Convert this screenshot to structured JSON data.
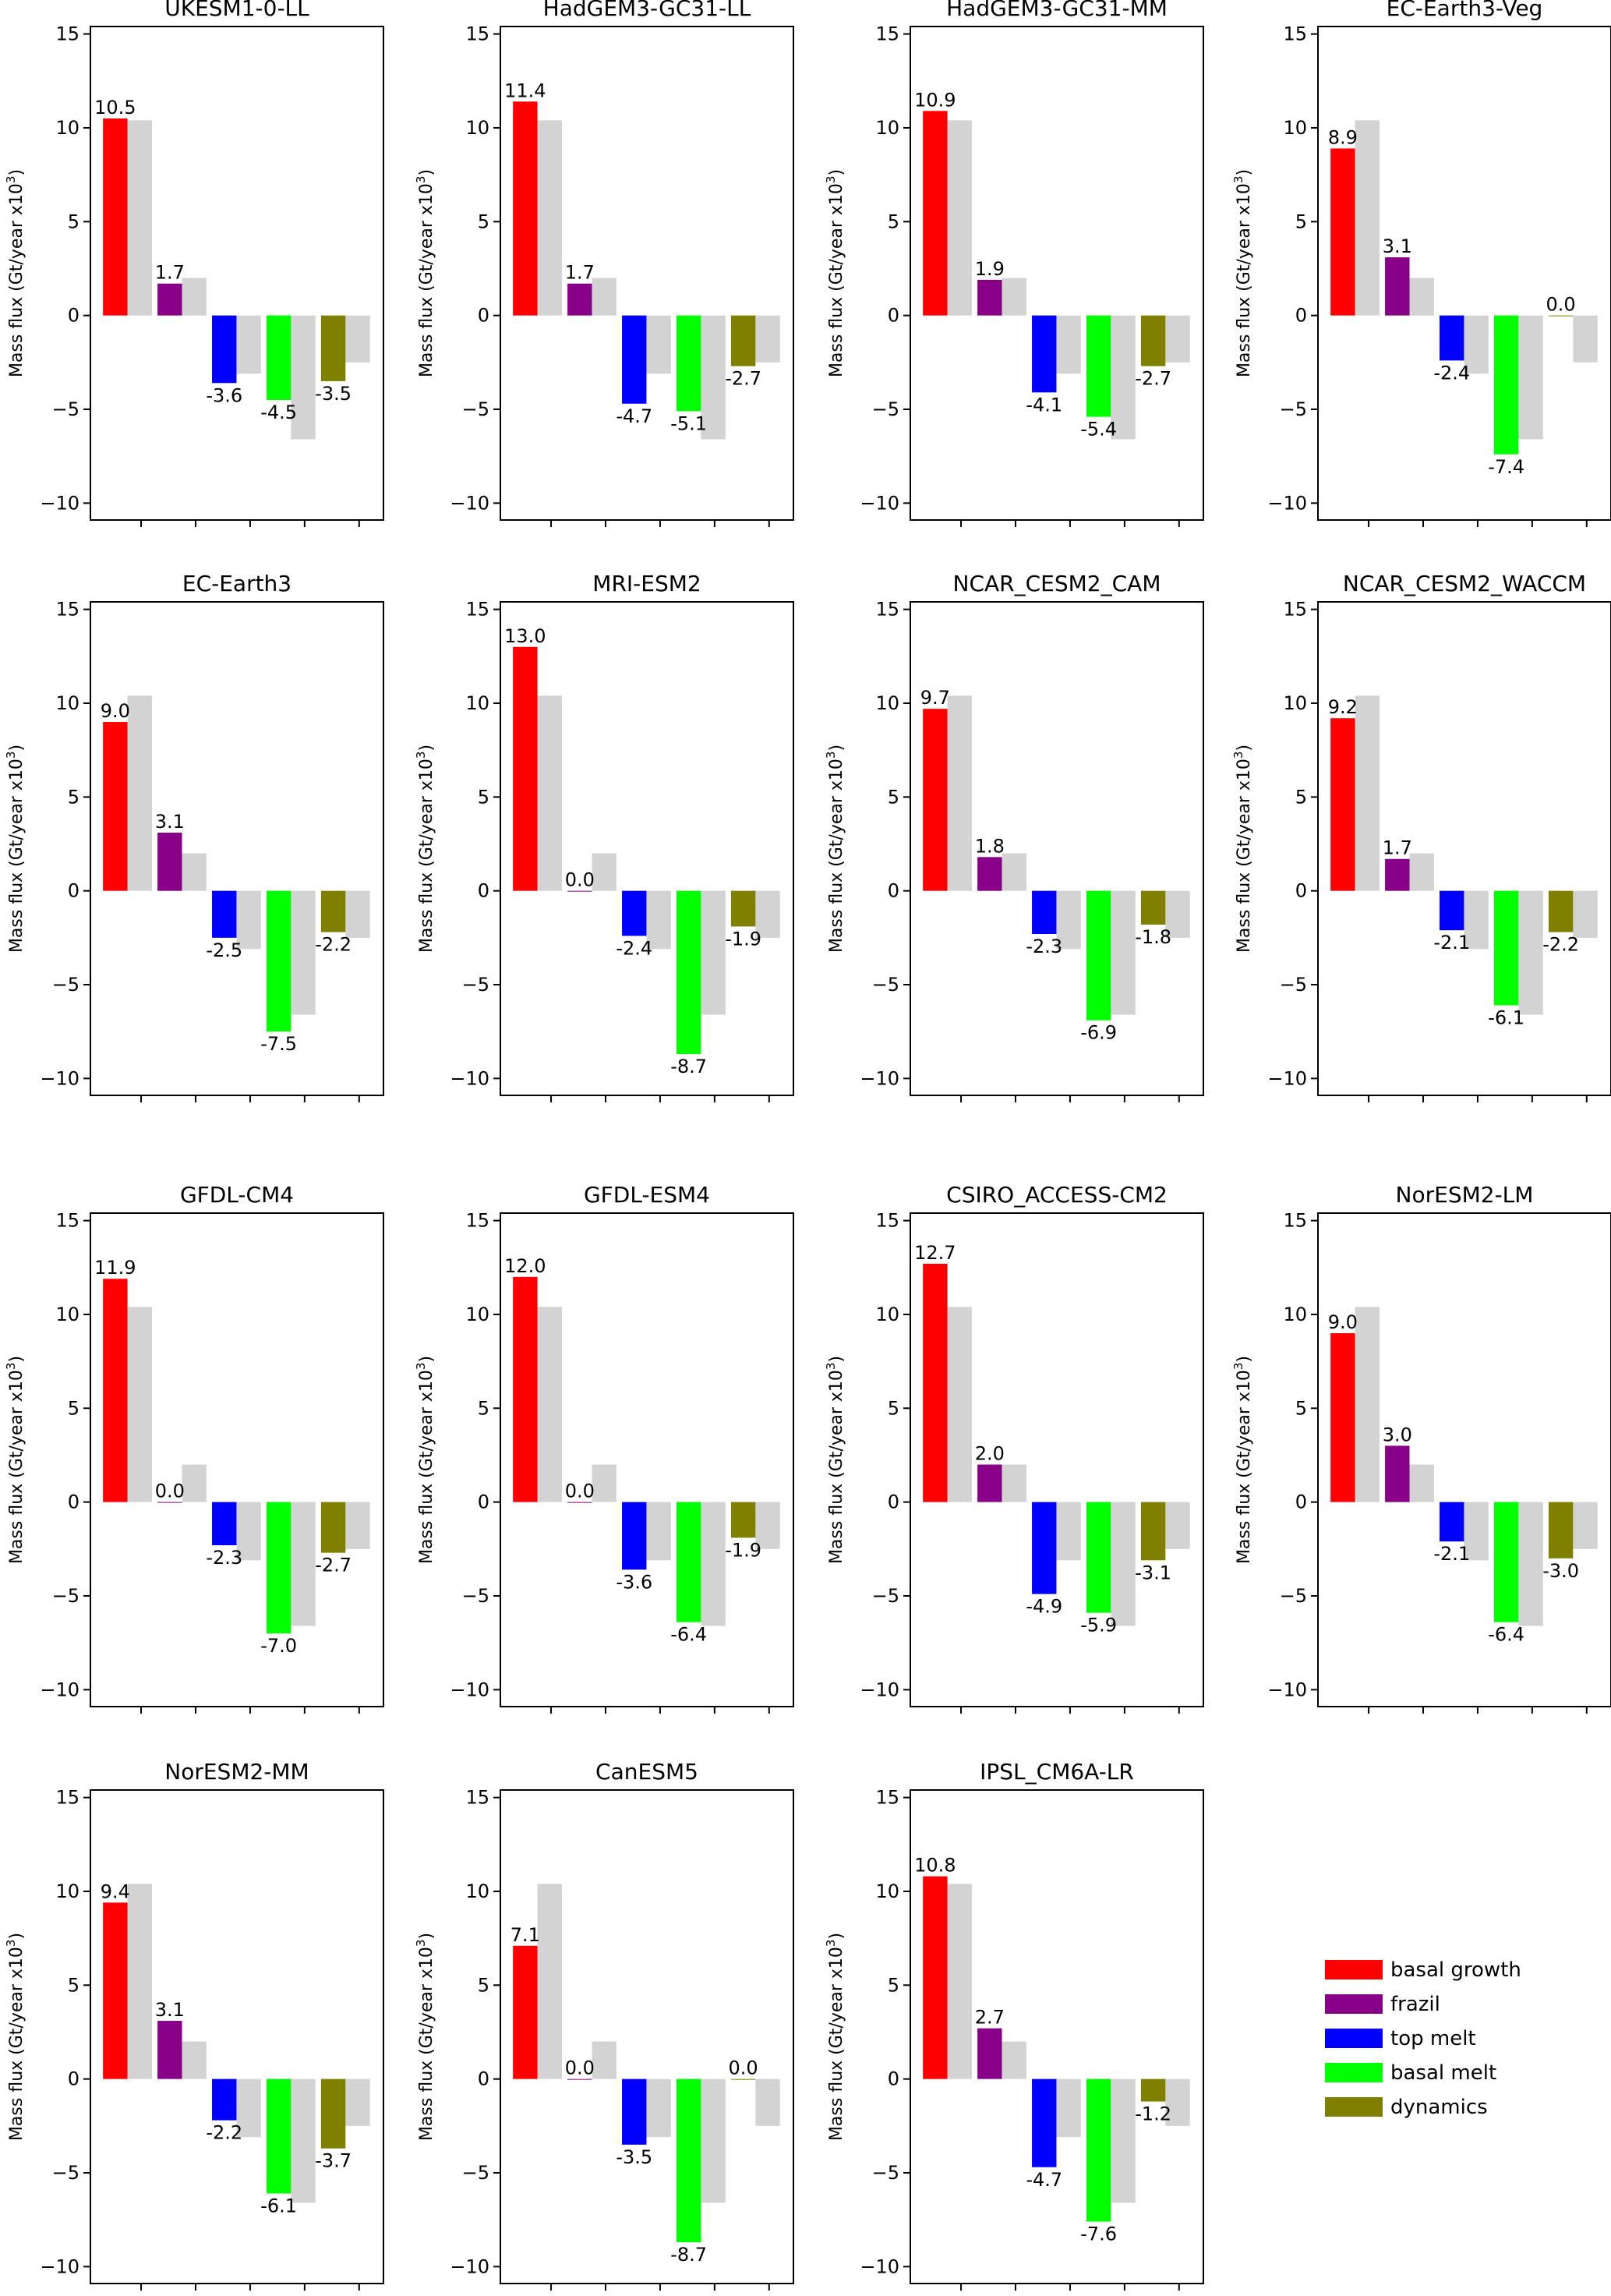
{
  "chart_data": {
    "type": "bar",
    "ylabel": "Mass flux (Gt/year x10",
    "ylabel_sup": "3",
    "ylabel_end": ")",
    "ylim": [
      -10.9,
      15.4
    ],
    "yticks": [
      15,
      10,
      5,
      0,
      -5,
      -10
    ],
    "ytick_labels": [
      "15",
      "10",
      "5",
      "0",
      "−5",
      "−10"
    ],
    "categories": [
      "basal growth",
      "frazil",
      "top melt",
      "basal melt",
      "dynamics"
    ],
    "colors": [
      "#ff0000",
      "#880088",
      "#0000ff",
      "#00ff00",
      "#808000"
    ],
    "reference_color": "#d3d3d3",
    "reference_values": [
      10.4,
      2.0,
      -3.1,
      -6.6,
      -2.5
    ],
    "legend": {
      "placement": "bottom-right",
      "entries": [
        "basal growth",
        "frazil",
        "top melt",
        "basal melt",
        "dynamics"
      ]
    },
    "panels": [
      {
        "title": "UKESM1-0-LL",
        "values": [
          10.5,
          1.7,
          -3.6,
          -4.5,
          -3.5
        ]
      },
      {
        "title": "HadGEM3-GC31-LL",
        "values": [
          11.4,
          1.7,
          -4.7,
          -5.1,
          -2.7
        ]
      },
      {
        "title": "HadGEM3-GC31-MM",
        "values": [
          10.9,
          1.9,
          -4.1,
          -5.4,
          -2.7
        ]
      },
      {
        "title": "EC-Earth3-Veg",
        "values": [
          8.9,
          3.1,
          -2.4,
          -7.4,
          0.0
        ]
      },
      {
        "title": "EC-Earth3",
        "values": [
          9.0,
          3.1,
          -2.5,
          -7.5,
          -2.2
        ]
      },
      {
        "title": "MRI-ESM2",
        "values": [
          13.0,
          0.0,
          -2.4,
          -8.7,
          -1.9
        ]
      },
      {
        "title": "NCAR_CESM2_CAM",
        "values": [
          9.7,
          1.8,
          -2.3,
          -6.9,
          -1.8
        ]
      },
      {
        "title": "NCAR_CESM2_WACCM",
        "values": [
          9.2,
          1.7,
          -2.1,
          -6.1,
          -2.2
        ]
      },
      {
        "title": "GFDL-CM4",
        "values": [
          11.9,
          0.0,
          -2.3,
          -7.0,
          -2.7
        ]
      },
      {
        "title": "GFDL-ESM4",
        "values": [
          12.0,
          0.0,
          -3.6,
          -6.4,
          -1.9
        ]
      },
      {
        "title": "CSIRO_ACCESS-CM2",
        "values": [
          12.7,
          2.0,
          -4.9,
          -5.9,
          -3.1
        ]
      },
      {
        "title": "NorESM2-LM",
        "values": [
          9.0,
          3.0,
          -2.1,
          -6.4,
          -3.0
        ]
      },
      {
        "title": "NorESM2-MM",
        "values": [
          9.4,
          3.1,
          -2.2,
          -6.1,
          -3.7
        ]
      },
      {
        "title": "CanESM5",
        "values": [
          7.1,
          0.0,
          -3.5,
          -8.7,
          0.0
        ]
      },
      {
        "title": "IPSL_CM6A-LR",
        "values": [
          10.8,
          2.7,
          -4.7,
          -7.6,
          -1.2
        ]
      }
    ]
  }
}
